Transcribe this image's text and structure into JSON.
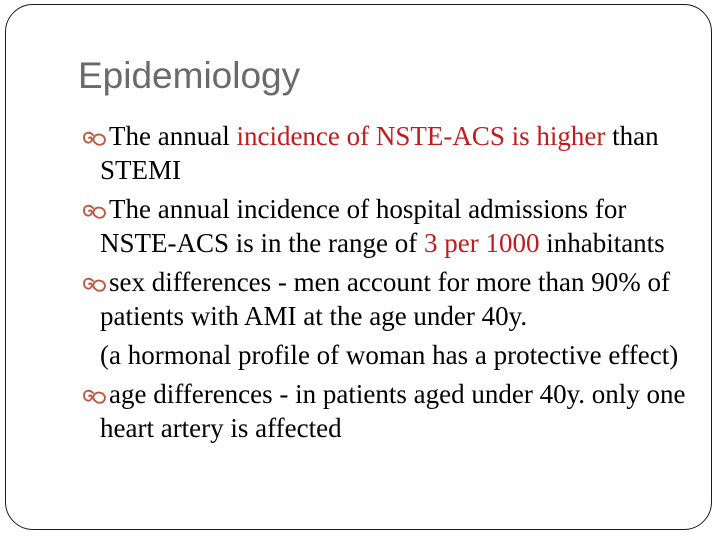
{
  "slide": {
    "title": "Epidemiology",
    "bullets": [
      {
        "bullet": true,
        "segments": [
          {
            "text": "The annual ",
            "red": false
          },
          {
            "text": "incidence of NSTE-ACS is higher",
            "red": true
          },
          {
            "text": " than STEMI",
            "red": false
          }
        ]
      },
      {
        "bullet": true,
        "segments": [
          {
            "text": "The annual incidence of hospital admissions for NSTE-ACS is in the range of ",
            "red": false
          },
          {
            "text": "3 per 1000",
            "red": true
          },
          {
            "text": " inhabitants",
            "red": false
          }
        ]
      },
      {
        "bullet": true,
        "segments": [
          {
            "text": "sex differences - men account for more than 90% of patients with AMI at the age under 40y.",
            "red": false
          }
        ]
      },
      {
        "bullet": false,
        "segments": [
          {
            "text": "(a hormonal profile of woman has a protective effect)",
            "red": false
          }
        ]
      },
      {
        "bullet": true,
        "segments": [
          {
            "text": "age differences - in patients aged under 40y. only one heart artery is affected",
            "red": false
          }
        ]
      }
    ],
    "colors": {
      "background": "#ffffff",
      "border": "#1c1c1c",
      "title": "#6a6a6a",
      "red": "#c21b1b",
      "bullet": "#bc5b3f"
    }
  }
}
